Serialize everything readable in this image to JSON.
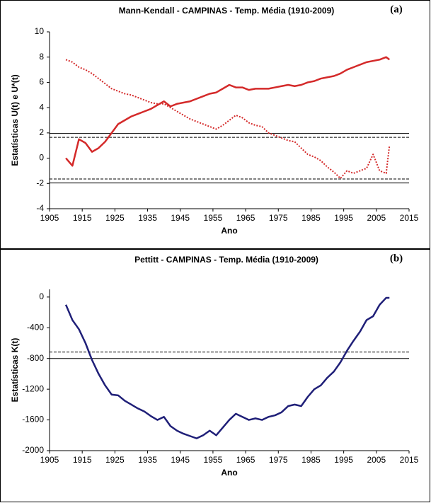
{
  "chart_data": [
    {
      "type": "line",
      "title": "Mann-Kendall - CAMPINAS - Temp. Média (1910-2009)",
      "panel_label": "(a)",
      "x_label": "Ano",
      "y_label": "Estatísticas U(t) e U*(t)",
      "x": [
        1910,
        1912,
        1914,
        1916,
        1918,
        1920,
        1922,
        1924,
        1926,
        1928,
        1930,
        1932,
        1934,
        1936,
        1938,
        1940,
        1942,
        1944,
        1946,
        1948,
        1950,
        1952,
        1954,
        1956,
        1958,
        1960,
        1962,
        1964,
        1966,
        1968,
        1970,
        1972,
        1974,
        1976,
        1978,
        1980,
        1982,
        1984,
        1986,
        1988,
        1990,
        1992,
        1994,
        1996,
        1998,
        2000,
        2002,
        2004,
        2006,
        2008,
        2009
      ],
      "series": [
        {
          "color": "#d42a2a",
          "style": "solid",
          "values": [
            0,
            -0.6,
            1.5,
            1.2,
            0.5,
            0.8,
            1.3,
            2.0,
            2.7,
            3.0,
            3.3,
            3.5,
            3.7,
            3.9,
            4.2,
            4.5,
            4.1,
            4.3,
            4.4,
            4.5,
            4.7,
            4.9,
            5.1,
            5.2,
            5.5,
            5.8,
            5.6,
            5.6,
            5.4,
            5.5,
            5.5,
            5.5,
            5.6,
            5.7,
            5.8,
            5.7,
            5.8,
            6.0,
            6.1,
            6.3,
            6.4,
            6.5,
            6.7,
            7.0,
            7.2,
            7.4,
            7.6,
            7.7,
            7.8,
            8.0,
            7.8
          ]
        },
        {
          "color": "#d42a2a",
          "style": "dotted",
          "values": [
            7.8,
            7.6,
            7.2,
            7.0,
            6.7,
            6.3,
            5.9,
            5.5,
            5.3,
            5.1,
            5.0,
            4.8,
            4.6,
            4.4,
            4.3,
            4.3,
            4.0,
            3.7,
            3.4,
            3.1,
            2.9,
            2.7,
            2.5,
            2.3,
            2.6,
            3.0,
            3.4,
            3.2,
            2.8,
            2.6,
            2.5,
            2.0,
            1.8,
            1.6,
            1.4,
            1.3,
            0.8,
            0.3,
            0.1,
            -0.2,
            -0.7,
            -1.1,
            -1.6,
            -1.0,
            -1.2,
            -1.0,
            -0.8,
            0.3,
            -1.0,
            -1.2,
            1.0
          ]
        }
      ],
      "hlines": [
        {
          "value": 1.96,
          "style": "solid"
        },
        {
          "value": 1.65,
          "style": "dashed"
        },
        {
          "value": -1.65,
          "style": "dashed"
        },
        {
          "value": -1.96,
          "style": "solid"
        }
      ],
      "xlim": [
        1905,
        2015
      ],
      "xticks": [
        1905,
        1915,
        1925,
        1935,
        1945,
        1955,
        1965,
        1975,
        1985,
        1995,
        2005,
        2015
      ],
      "ylim": [
        -4,
        10
      ],
      "yticks": [
        -4,
        -2,
        0,
        2,
        4,
        6,
        8,
        10
      ]
    },
    {
      "type": "line",
      "title": "Pettitt - CAMPINAS - Temp. Média (1910-2009)",
      "panel_label": "(b)",
      "x_label": "Ano",
      "y_label": "Estatísticas K(t)",
      "x": [
        1910,
        1912,
        1914,
        1916,
        1918,
        1920,
        1922,
        1924,
        1926,
        1928,
        1930,
        1932,
        1934,
        1936,
        1938,
        1940,
        1942,
        1944,
        1946,
        1948,
        1950,
        1952,
        1954,
        1956,
        1958,
        1960,
        1962,
        1964,
        1966,
        1968,
        1970,
        1972,
        1974,
        1976,
        1978,
        1980,
        1982,
        1984,
        1986,
        1988,
        1990,
        1992,
        1994,
        1996,
        1998,
        2000,
        2002,
        2004,
        2006,
        2008,
        2009
      ],
      "series": [
        {
          "color": "#1f1f78",
          "style": "solid",
          "values": [
            -100,
            -300,
            -420,
            -600,
            -820,
            -1000,
            -1150,
            -1270,
            -1280,
            -1350,
            -1400,
            -1450,
            -1490,
            -1550,
            -1600,
            -1560,
            -1680,
            -1740,
            -1780,
            -1810,
            -1840,
            -1800,
            -1740,
            -1800,
            -1700,
            -1600,
            -1520,
            -1560,
            -1600,
            -1580,
            -1600,
            -1560,
            -1540,
            -1500,
            -1420,
            -1400,
            -1420,
            -1300,
            -1200,
            -1150,
            -1050,
            -970,
            -850,
            -700,
            -570,
            -450,
            -300,
            -250,
            -100,
            -10,
            -10
          ]
        }
      ],
      "hlines": [
        {
          "value": -716,
          "style": "dashed"
        },
        {
          "value": -800,
          "style": "solid"
        }
      ],
      "xlim": [
        1905,
        2015
      ],
      "xticks": [
        1905,
        1915,
        1925,
        1935,
        1945,
        1955,
        1965,
        1975,
        1985,
        1995,
        2005,
        2015
      ],
      "ylim": [
        -2000,
        100
      ],
      "yticks": [
        -2000,
        -1600,
        -1200,
        -800,
        -400,
        0
      ]
    }
  ]
}
